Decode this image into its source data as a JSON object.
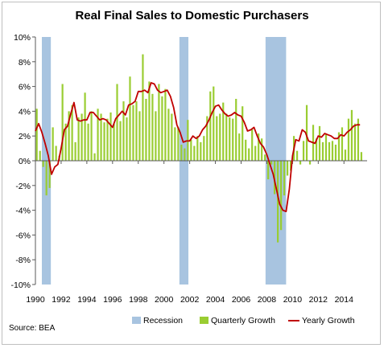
{
  "chart_data": {
    "type": "bar+line",
    "title": "Real Final Sales to Domestic Purchasers",
    "source": "Source: BEA",
    "ylim": [
      -10,
      10
    ],
    "yticks": [
      "10%",
      "8%",
      "6%",
      "4%",
      "2%",
      "0%",
      "-2%",
      "-4%",
      "-6%",
      "-8%",
      "-10%"
    ],
    "ytick_values": [
      10,
      8,
      6,
      4,
      2,
      0,
      -2,
      -4,
      -6,
      -8,
      -10
    ],
    "xlim": [
      1990,
      2015.8
    ],
    "xticks": [
      "1990",
      "1992",
      "1994",
      "1996",
      "1998",
      "2000",
      "2002",
      "2004",
      "2006",
      "2008",
      "2010",
      "2012",
      "2014"
    ],
    "xtick_values": [
      1990,
      1992,
      1994,
      1996,
      1998,
      2000,
      2002,
      2004,
      2006,
      2008,
      2010,
      2012,
      2014
    ],
    "grid": false,
    "legend_position": "bottom",
    "legend": [
      {
        "name": "Recession",
        "color": "#a8c4e0",
        "kind": "swatch"
      },
      {
        "name": "Quarterly Growth",
        "color": "#9acd32",
        "kind": "swatch"
      },
      {
        "name": "Yearly Growth",
        "color": "#c00000",
        "kind": "line"
      }
    ],
    "recessions": [
      {
        "start": 1990.5,
        "end": 1991.2
      },
      {
        "start": 2001.2,
        "end": 2001.9
      },
      {
        "start": 2007.9,
        "end": 2009.5
      }
    ],
    "series": [
      {
        "name": "Quarterly Growth",
        "type": "bar",
        "color": "#9acd32",
        "x": [
          1990.0,
          1990.25,
          1990.5,
          1990.75,
          1991.0,
          1991.25,
          1991.5,
          1991.75,
          1992.0,
          1992.25,
          1992.5,
          1992.75,
          1993.0,
          1993.25,
          1993.5,
          1993.75,
          1994.0,
          1994.25,
          1994.5,
          1994.75,
          1995.0,
          1995.25,
          1995.5,
          1995.75,
          1996.0,
          1996.25,
          1996.5,
          1996.75,
          1997.0,
          1997.25,
          1997.5,
          1997.75,
          1998.0,
          1998.25,
          1998.5,
          1998.75,
          1999.0,
          1999.25,
          1999.5,
          1999.75,
          2000.0,
          2000.25,
          2000.5,
          2000.75,
          2001.0,
          2001.25,
          2001.5,
          2001.75,
          2002.0,
          2002.25,
          2002.5,
          2002.75,
          2003.0,
          2003.25,
          2003.5,
          2003.75,
          2004.0,
          2004.25,
          2004.5,
          2004.75,
          2005.0,
          2005.25,
          2005.5,
          2005.75,
          2006.0,
          2006.25,
          2006.5,
          2006.75,
          2007.0,
          2007.25,
          2007.5,
          2007.75,
          2008.0,
          2008.25,
          2008.5,
          2008.75,
          2009.0,
          2009.25,
          2009.5,
          2009.75,
          2010.0,
          2010.25,
          2010.5,
          2010.75,
          2011.0,
          2011.25,
          2011.5,
          2011.75,
          2012.0,
          2012.25,
          2012.5,
          2012.75,
          2013.0,
          2013.25,
          2013.5,
          2013.75,
          2014.0,
          2014.25,
          2014.5,
          2014.75,
          2015.0,
          2015.25
        ],
        "values": [
          4.2,
          0.8,
          -0.5,
          -2.8,
          -2.2,
          2.7,
          1.2,
          0.4,
          6.2,
          3.0,
          4.0,
          4.5,
          1.5,
          3.5,
          3.8,
          5.5,
          3.0,
          4.0,
          0.6,
          4.2,
          3.8,
          3.1,
          3.4,
          3.9,
          3.0,
          6.2,
          3.2,
          4.8,
          3.5,
          6.8,
          4.5,
          4.8,
          4.0,
          8.6,
          5.0,
          6.4,
          5.4,
          4.0,
          6.2,
          5.2,
          5.8,
          4.2,
          3.8,
          2.7,
          2.7,
          1.3,
          1.0,
          3.3,
          1.7,
          1.2,
          2.0,
          1.5,
          2.0,
          3.6,
          5.6,
          6.0,
          3.6,
          3.8,
          4.7,
          3.8,
          3.5,
          3.4,
          5.0,
          2.2,
          4.4,
          1.7,
          1.0,
          2.6,
          1.2,
          2.2,
          1.8,
          0.5,
          -1.5,
          -0.3,
          -2.7,
          -6.6,
          -5.6,
          -2.8,
          -1.2,
          -0.8,
          2.0,
          0.8,
          -0.3,
          1.6,
          4.5,
          -0.3,
          2.9,
          1.8,
          2.8,
          1.5,
          2.2,
          1.5,
          1.6,
          1.3,
          2.3,
          2.7,
          0.9,
          3.4,
          4.1,
          3.0,
          3.4,
          0.7
        ]
      },
      {
        "name": "Yearly Growth",
        "type": "line",
        "color": "#c00000",
        "x": [
          1990.0,
          1990.25,
          1990.5,
          1990.75,
          1991.0,
          1991.25,
          1991.5,
          1991.75,
          1992.0,
          1992.25,
          1992.5,
          1992.75,
          1993.0,
          1993.25,
          1993.5,
          1993.75,
          1994.0,
          1994.25,
          1994.5,
          1994.75,
          1995.0,
          1995.25,
          1995.5,
          1995.75,
          1996.0,
          1996.25,
          1996.5,
          1996.75,
          1997.0,
          1997.25,
          1997.5,
          1997.75,
          1998.0,
          1998.25,
          1998.5,
          1998.75,
          1999.0,
          1999.25,
          1999.5,
          1999.75,
          2000.0,
          2000.25,
          2000.5,
          2000.75,
          2001.0,
          2001.25,
          2001.5,
          2001.75,
          2002.0,
          2002.25,
          2002.5,
          2002.75,
          2003.0,
          2003.25,
          2003.5,
          2003.75,
          2004.0,
          2004.25,
          2004.5,
          2004.75,
          2005.0,
          2005.25,
          2005.5,
          2005.75,
          2006.0,
          2006.25,
          2006.5,
          2006.75,
          2007.0,
          2007.25,
          2007.5,
          2007.75,
          2008.0,
          2008.25,
          2008.5,
          2008.75,
          2009.0,
          2009.25,
          2009.5,
          2009.75,
          2010.0,
          2010.25,
          2010.5,
          2010.75,
          2011.0,
          2011.25,
          2011.5,
          2011.75,
          2012.0,
          2012.25,
          2012.5,
          2012.75,
          2013.0,
          2013.25,
          2013.5,
          2013.75,
          2014.0,
          2014.25,
          2014.5,
          2014.75,
          2015.0,
          2015.25
        ],
        "values": [
          2.4,
          3.0,
          2.3,
          1.4,
          0.4,
          -1.1,
          -0.5,
          -0.3,
          1.0,
          2.5,
          2.8,
          3.8,
          4.7,
          3.3,
          3.2,
          3.3,
          3.3,
          3.9,
          3.9,
          3.6,
          3.3,
          3.4,
          3.3,
          3.0,
          2.7,
          3.4,
          3.7,
          4.0,
          3.7,
          4.5,
          4.6,
          4.8,
          5.6,
          5.6,
          5.7,
          5.5,
          6.3,
          6.2,
          5.7,
          5.5,
          5.6,
          5.7,
          5.2,
          4.3,
          2.9,
          2.3,
          1.5,
          1.6,
          1.6,
          2.0,
          1.8,
          2.0,
          2.5,
          2.8,
          3.3,
          3.9,
          4.4,
          4.5,
          4.1,
          3.8,
          3.6,
          3.7,
          3.9,
          3.7,
          3.6,
          3.1,
          2.4,
          2.5,
          2.7,
          2.0,
          1.4,
          1.1,
          0.5,
          -0.3,
          -1.1,
          -2.3,
          -3.5,
          -4.0,
          -4.1,
          -2.3,
          0.4,
          1.7,
          1.6,
          2.5,
          2.3,
          1.6,
          1.5,
          1.4,
          2.0,
          1.9,
          2.2,
          2.1,
          2.0,
          1.8,
          1.8,
          2.1,
          2.0,
          2.3,
          2.5,
          2.8,
          2.9,
          2.9
        ]
      }
    ]
  }
}
